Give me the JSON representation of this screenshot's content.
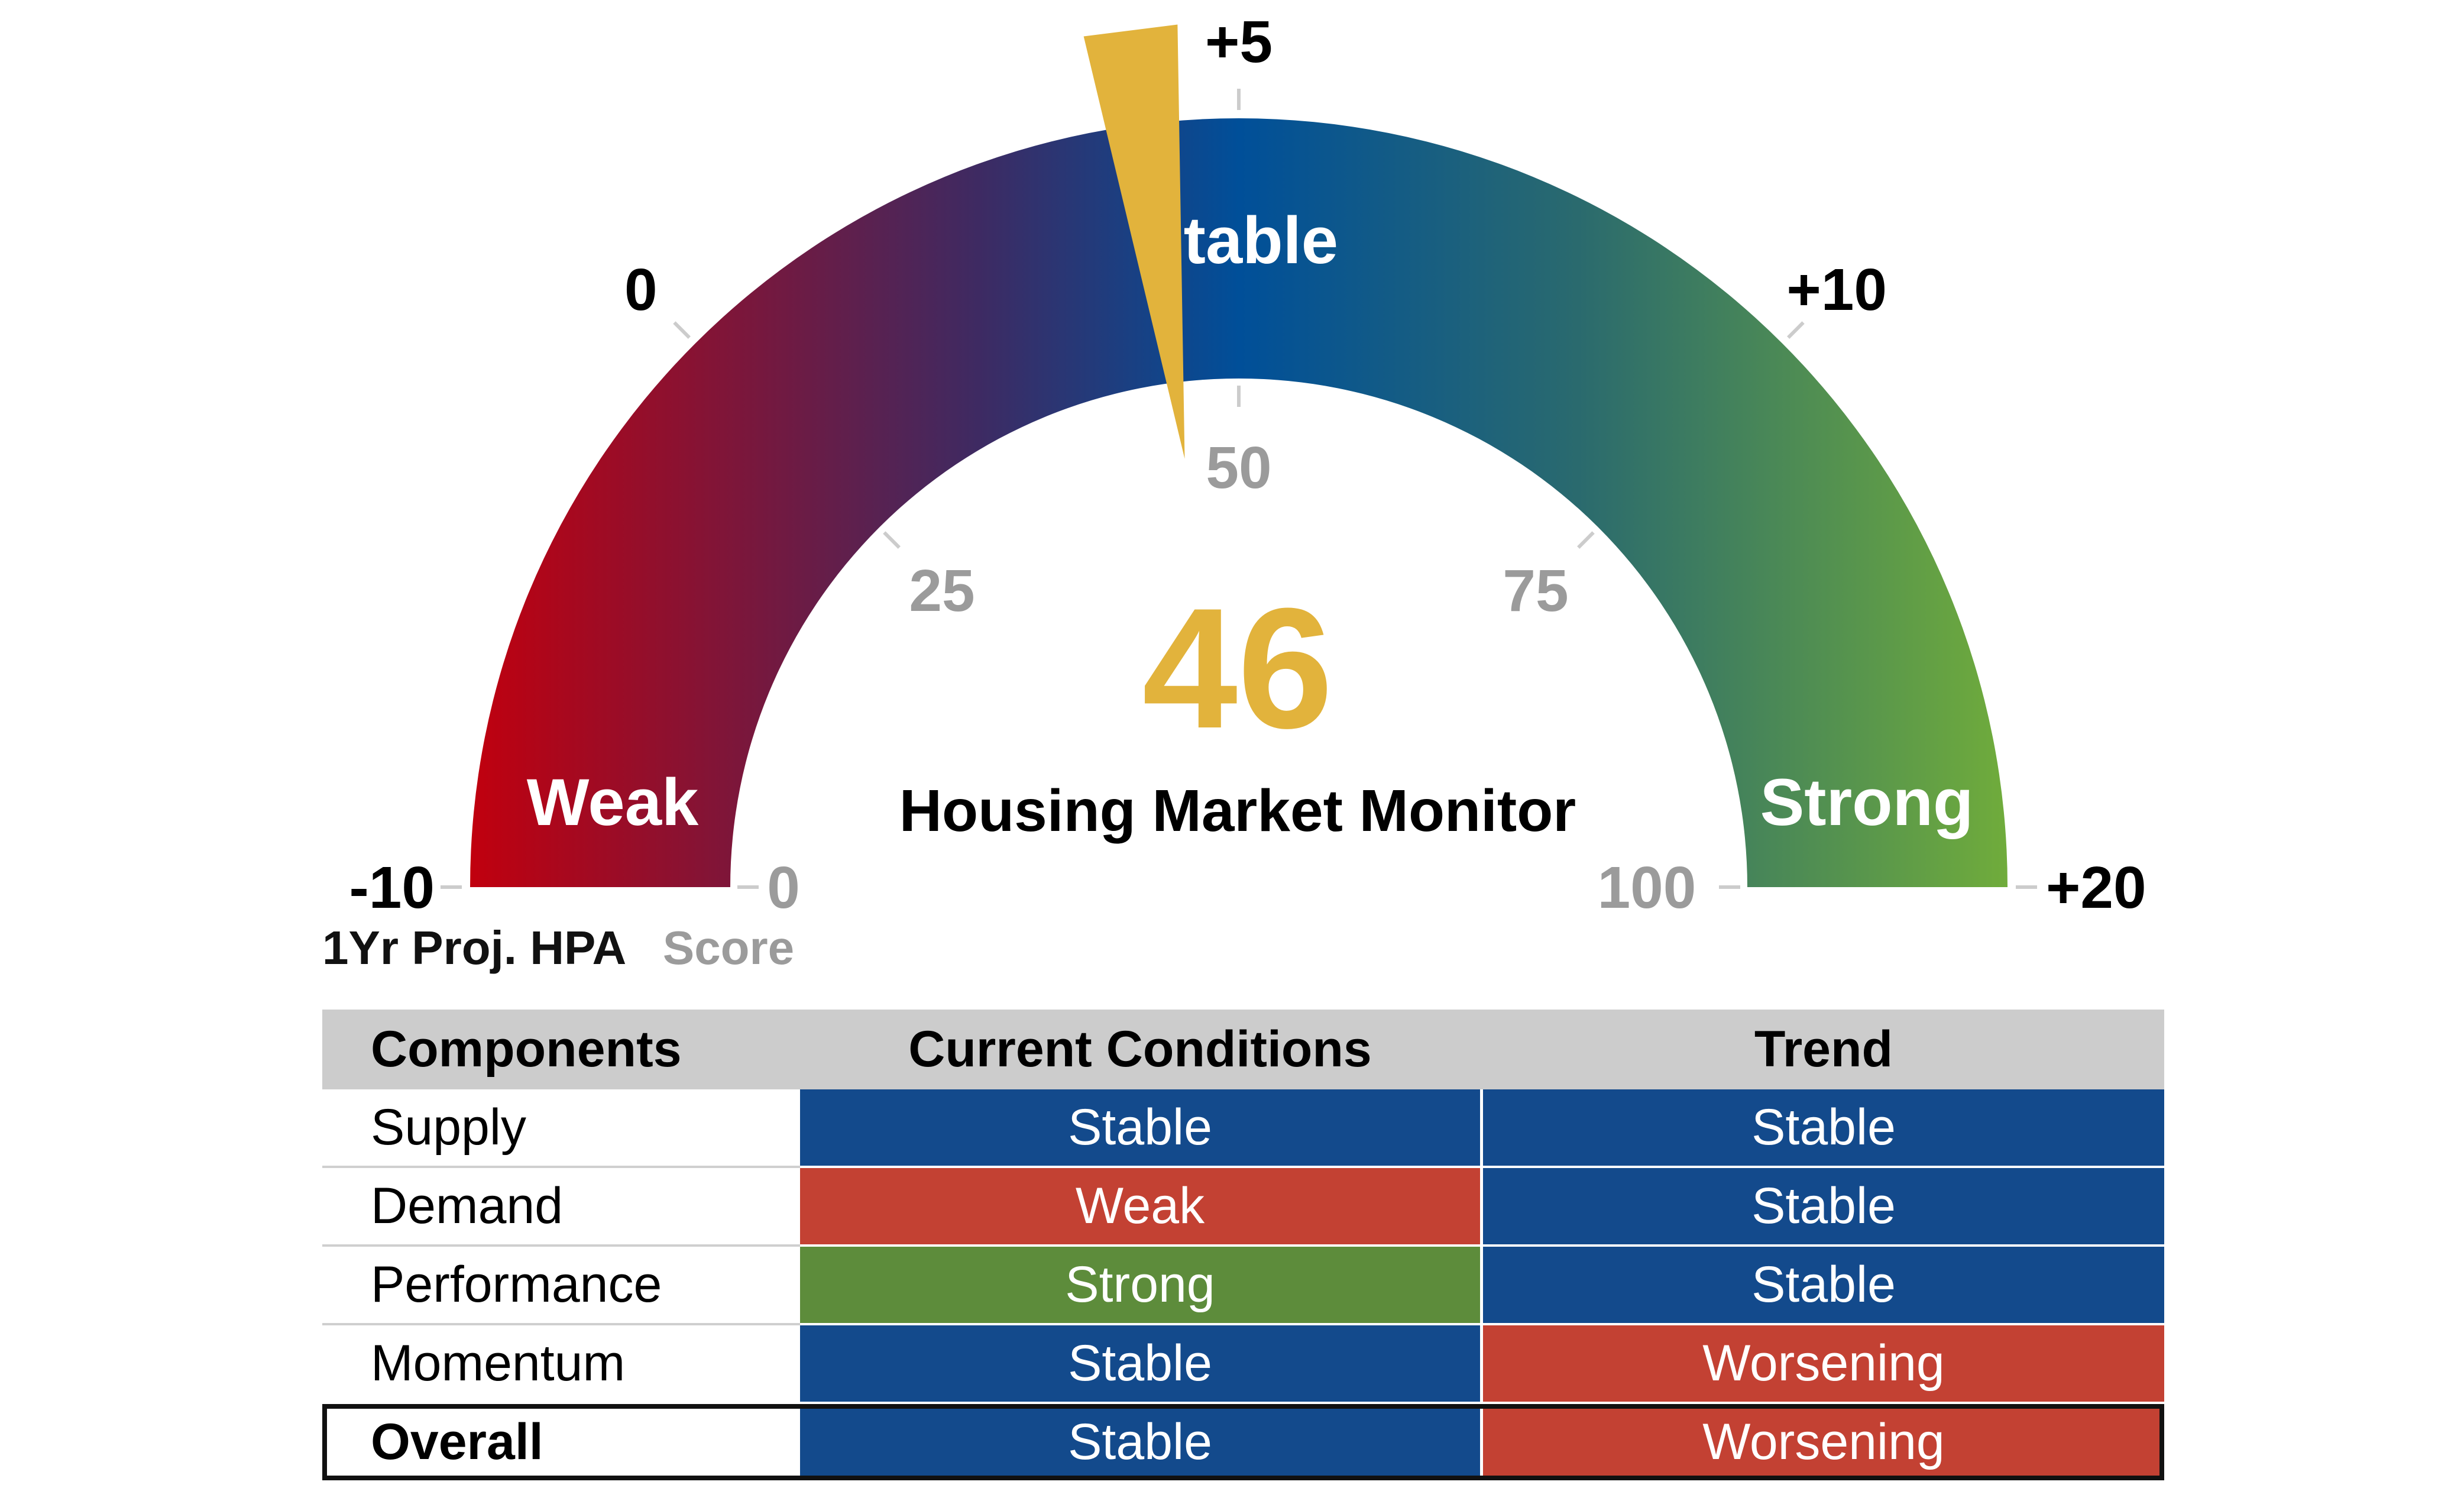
{
  "chart_data": {
    "type": "gauge",
    "title": "Housing Market Monitor",
    "score": {
      "value": 46,
      "min": 0,
      "max": 100,
      "label": "Score",
      "ticks": [
        0,
        25,
        50,
        75,
        100
      ]
    },
    "hpa": {
      "min": -10,
      "max": 20,
      "label": "1Yr Proj. HPA",
      "ticks": [
        "-10",
        "0",
        "+5",
        "+10",
        "+20"
      ],
      "tick_scores": [
        0,
        25,
        50,
        75,
        100
      ]
    },
    "zones": [
      {
        "label": "Weak",
        "color": "#c1000e"
      },
      {
        "label": "Stable",
        "color": "#004f99"
      },
      {
        "label": "Strong",
        "color": "#70ac3b"
      }
    ],
    "needle_color": "#e2b33c"
  },
  "table": {
    "headers": [
      "Components",
      "Current Conditions",
      "Trend"
    ],
    "rows": [
      {
        "component": "Supply",
        "current": "Stable",
        "trend": "Stable"
      },
      {
        "component": "Demand",
        "current": "Weak",
        "trend": "Stable"
      },
      {
        "component": "Performance",
        "current": "Strong",
        "trend": "Stable"
      },
      {
        "component": "Momentum",
        "current": "Stable",
        "trend": "Worsening"
      },
      {
        "component": "Overall",
        "current": "Stable",
        "trend": "Worsening"
      }
    ],
    "status_colors": {
      "Stable": "#134a8c",
      "Weak": "#c34133",
      "Strong": "#5d8c3b",
      "Worsening": "#c34133"
    }
  }
}
